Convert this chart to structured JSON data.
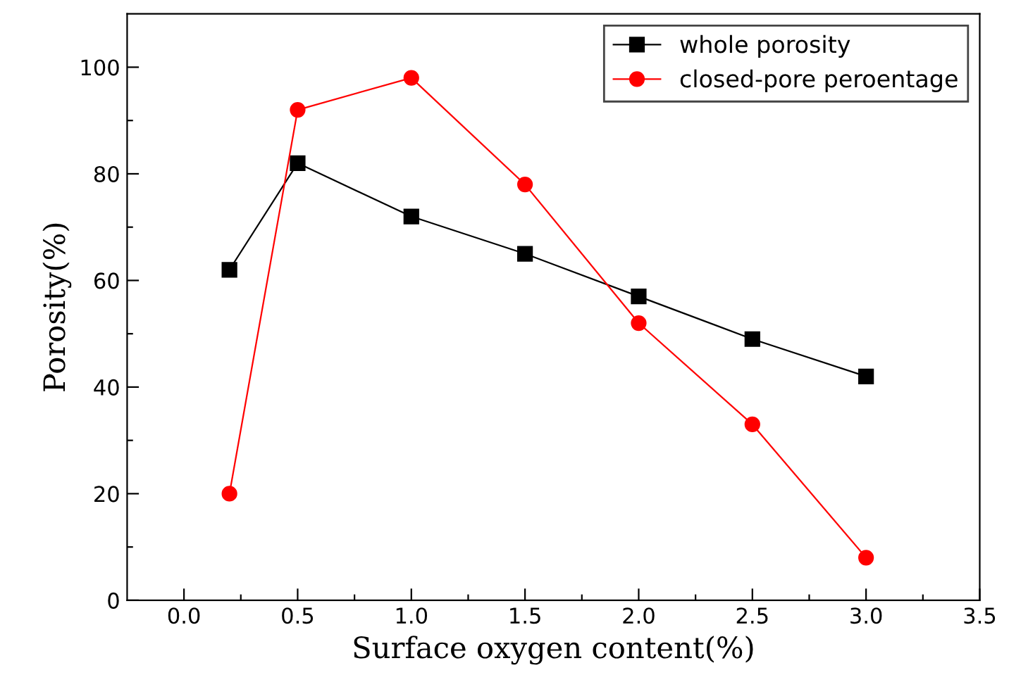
{
  "chart_data": {
    "type": "line",
    "xlabel": "Surface oxygen content(%)",
    "ylabel": "Porosity(%)",
    "x": [
      0.2,
      0.5,
      1.0,
      1.5,
      2.0,
      2.5,
      3.0
    ],
    "series": [
      {
        "name": "whole porosity",
        "color": "#000000",
        "marker": "square",
        "values": [
          62,
          82,
          72,
          65,
          57,
          49,
          42
        ]
      },
      {
        "name": "closed-pore peroentage",
        "color": "#ff0000",
        "marker": "circle",
        "values": [
          20,
          92,
          98,
          78,
          52,
          33,
          8
        ]
      }
    ],
    "xlim": [
      -0.25,
      3.5
    ],
    "ylim": [
      0,
      110
    ],
    "xticks": [
      {
        "value": 0.0,
        "label": "0.0"
      },
      {
        "value": 0.25,
        "label": null
      },
      0.5,
      {
        "value": 0.75,
        "label": null
      },
      {
        "value": 1.0,
        "label": "1.0"
      },
      {
        "value": 1.25,
        "label": null
      },
      1.5,
      {
        "value": 1.75,
        "label": null
      },
      {
        "value": 2.0,
        "label": "2.0"
      },
      {
        "value": 2.25,
        "label": null
      },
      2.5,
      {
        "value": 2.75,
        "label": null
      },
      {
        "value": 3.0,
        "label": "3.0"
      },
      {
        "value": 3.25,
        "label": null
      },
      3.5
    ],
    "yticks": [
      0,
      {
        "value": 10,
        "label": null
      },
      20,
      {
        "value": 30,
        "label": null
      },
      40,
      {
        "value": 50,
        "label": null
      },
      60,
      {
        "value": 70,
        "label": null
      },
      80,
      {
        "value": 90,
        "label": null
      },
      100
    ],
    "grid": false,
    "legend": "top right",
    "line_style": "solid"
  }
}
